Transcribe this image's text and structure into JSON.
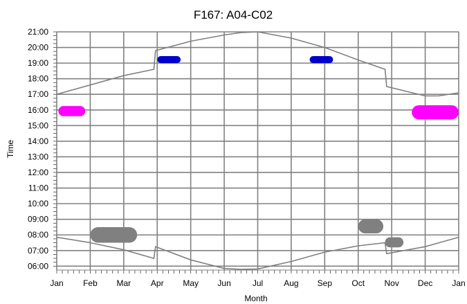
{
  "chart_data": {
    "type": "scatter",
    "title": "F167: A04-C02",
    "xlabel": "Month",
    "ylabel": "Time",
    "x_tick_labels": [
      "Jan",
      "Feb",
      "Mar",
      "Apr",
      "May",
      "Jun",
      "Jul",
      "Aug",
      "Sep",
      "Oct",
      "Nov",
      "Dec",
      "Jan"
    ],
    "y_tick_labels": [
      "06:00",
      "07:00",
      "08:00",
      "09:00",
      "10:00",
      "11:00",
      "12:00",
      "13:00",
      "14:00",
      "15:00",
      "16:00",
      "17:00",
      "18:00",
      "19:00",
      "20:00",
      "21:00"
    ],
    "xlim": [
      0,
      12
    ],
    "ylim": [
      5.75,
      21.0
    ],
    "grid": true,
    "colors": {
      "line": "#808080",
      "grid": "#808080",
      "magenta": "#ff00ff",
      "blue": "#0000cc",
      "gray": "#808080"
    },
    "series": [
      {
        "kind": "line",
        "color": "line",
        "points": [
          [
            0,
            17.0
          ],
          [
            1,
            17.6
          ],
          [
            2,
            18.2
          ],
          [
            2.9,
            18.6
          ],
          [
            2.95,
            19.8
          ],
          [
            4,
            20.4
          ],
          [
            5,
            20.8
          ],
          [
            5.5,
            20.95
          ],
          [
            6,
            21.0
          ],
          [
            7,
            20.6
          ],
          [
            8,
            20.0
          ],
          [
            9,
            19.2
          ],
          [
            9.8,
            18.6
          ],
          [
            9.85,
            17.5
          ],
          [
            11,
            16.9
          ],
          [
            11.4,
            16.9
          ],
          [
            12,
            17.1
          ]
        ]
      },
      {
        "kind": "line",
        "color": "line",
        "points": [
          [
            0,
            7.85
          ],
          [
            1,
            7.5
          ],
          [
            2,
            7.05
          ],
          [
            2.9,
            6.5
          ],
          [
            2.95,
            7.25
          ],
          [
            4,
            6.4
          ],
          [
            5,
            5.85
          ],
          [
            5.5,
            5.8
          ],
          [
            6,
            5.82
          ],
          [
            7,
            6.3
          ],
          [
            8,
            6.9
          ],
          [
            9,
            7.3
          ],
          [
            9.8,
            7.5
          ],
          [
            9.85,
            6.8
          ],
          [
            11,
            7.25
          ],
          [
            12,
            7.85
          ]
        ]
      },
      {
        "kind": "blob",
        "color": "magenta",
        "x0": 0.05,
        "x1": 0.85,
        "y0": 15.6,
        "y1": 16.25
      },
      {
        "kind": "blob",
        "color": "magenta",
        "x0": 10.6,
        "x1": 12.0,
        "y0": 15.4,
        "y1": 16.3
      },
      {
        "kind": "blob",
        "color": "blue",
        "x0": 3.0,
        "x1": 3.7,
        "y0": 19.0,
        "y1": 19.45
      },
      {
        "kind": "blob",
        "color": "blue",
        "x0": 7.55,
        "x1": 8.25,
        "y0": 19.0,
        "y1": 19.45
      },
      {
        "kind": "blob",
        "color": "gray",
        "x0": 1.0,
        "x1": 2.4,
        "y0": 7.5,
        "y1": 8.5
      },
      {
        "kind": "blob",
        "color": "gray",
        "x0": 9.0,
        "x1": 9.75,
        "y0": 8.1,
        "y1": 9.0
      },
      {
        "kind": "blob",
        "color": "gray",
        "x0": 9.8,
        "x1": 10.35,
        "y0": 7.2,
        "y1": 7.85
      }
    ]
  }
}
